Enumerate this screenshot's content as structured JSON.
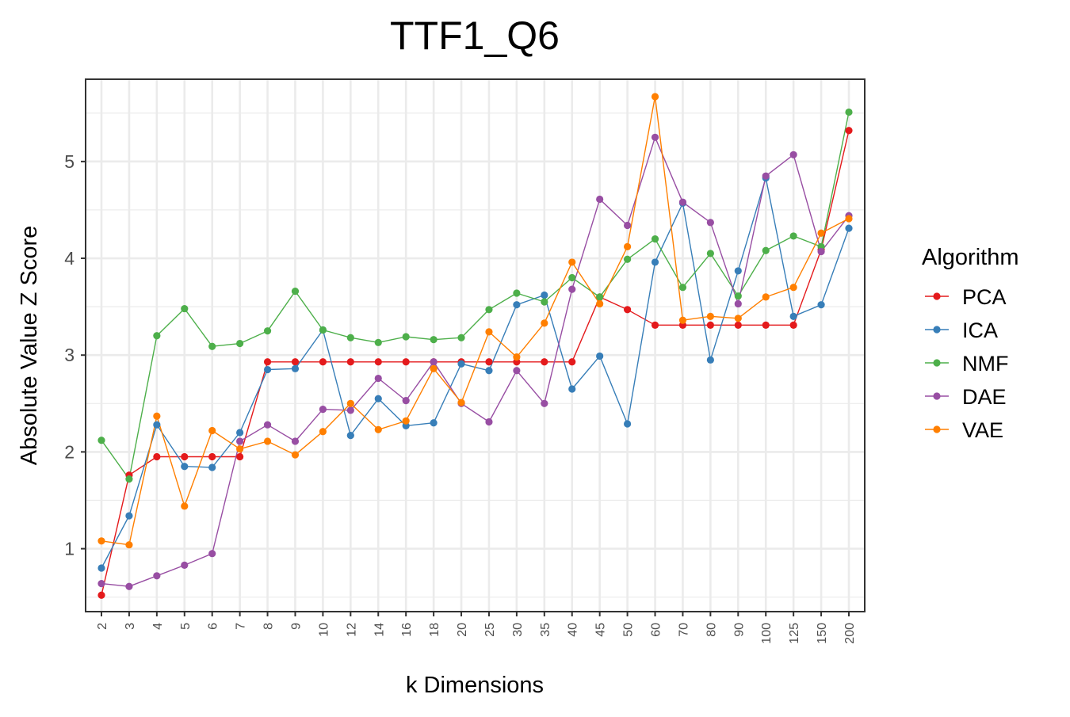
{
  "chart_data": {
    "type": "line",
    "title": "TTF1_Q6",
    "xlabel": "k Dimensions",
    "ylabel": "Absolute Value Z Score",
    "categories": [
      "2",
      "3",
      "4",
      "5",
      "6",
      "7",
      "8",
      "9",
      "10",
      "12",
      "14",
      "16",
      "18",
      "20",
      "25",
      "30",
      "35",
      "40",
      "45",
      "50",
      "60",
      "70",
      "80",
      "90",
      "100",
      "125",
      "150",
      "200"
    ],
    "y_ticks": [
      1,
      2,
      3,
      4,
      5
    ],
    "ylim": [
      0.35,
      5.85
    ],
    "grid": true,
    "legend": {
      "title": "Algorithm",
      "placement": "right"
    },
    "series": [
      {
        "name": "PCA",
        "color": "#E41A1C",
        "values": [
          0.52,
          1.76,
          1.95,
          1.95,
          1.95,
          1.95,
          2.93,
          2.93,
          2.93,
          2.93,
          2.93,
          2.93,
          2.93,
          2.93,
          2.93,
          2.93,
          2.93,
          2.93,
          3.6,
          3.47,
          3.31,
          3.31,
          3.31,
          3.31,
          3.31,
          3.31,
          4.09,
          5.32
        ]
      },
      {
        "name": "ICA",
        "color": "#377EB8",
        "values": [
          0.8,
          1.34,
          2.28,
          1.85,
          1.84,
          2.2,
          2.85,
          2.86,
          3.26,
          2.17,
          2.55,
          2.27,
          2.3,
          2.91,
          2.84,
          3.52,
          3.62,
          2.65,
          2.99,
          2.29,
          3.96,
          4.57,
          2.95,
          3.87,
          4.83,
          3.4,
          3.52,
          4.31
        ]
      },
      {
        "name": "NMF",
        "color": "#4DAF4A",
        "values": [
          2.12,
          1.72,
          3.2,
          3.48,
          3.09,
          3.12,
          3.25,
          3.66,
          3.26,
          3.18,
          3.13,
          3.19,
          3.16,
          3.18,
          3.47,
          3.64,
          3.55,
          3.8,
          3.6,
          3.99,
          4.2,
          3.7,
          4.05,
          3.61,
          4.08,
          4.23,
          4.12,
          5.51
        ]
      },
      {
        "name": "DAE",
        "color": "#984EA3",
        "values": [
          0.64,
          0.61,
          0.72,
          0.83,
          0.95,
          2.11,
          2.28,
          2.11,
          2.44,
          2.43,
          2.76,
          2.53,
          2.93,
          2.5,
          2.31,
          2.84,
          2.5,
          3.68,
          4.61,
          4.34,
          5.25,
          4.58,
          4.37,
          3.53,
          4.85,
          5.07,
          4.07,
          4.44
        ]
      },
      {
        "name": "VAE",
        "color": "#FF7F00",
        "values": [
          1.08,
          1.04,
          2.37,
          1.44,
          2.22,
          2.03,
          2.11,
          1.97,
          2.21,
          2.5,
          2.23,
          2.32,
          2.86,
          2.51,
          3.24,
          2.98,
          3.33,
          3.96,
          3.53,
          4.12,
          5.67,
          3.36,
          3.4,
          3.38,
          3.6,
          3.7,
          4.26,
          4.41
        ]
      }
    ]
  }
}
